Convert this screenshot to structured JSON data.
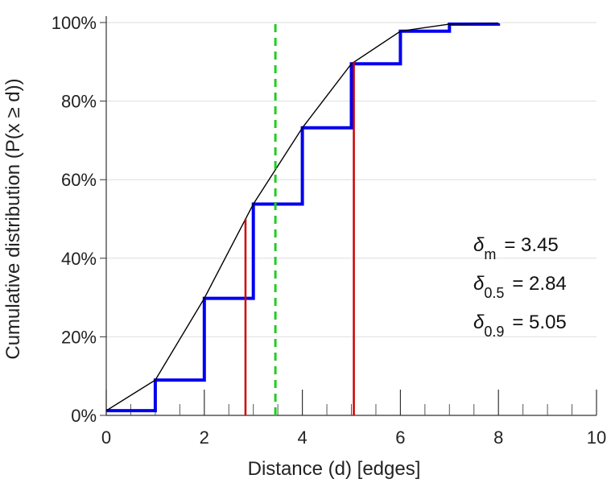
{
  "chart_data": {
    "type": "line",
    "xlabel": "Distance (d) [edges]",
    "ylabel": "Cumulative distribution (P(x ≥ d))",
    "xlim": [
      0,
      10
    ],
    "ylim": [
      0,
      100
    ],
    "x_ticks": [
      0,
      2,
      4,
      6,
      8,
      10
    ],
    "x_tick_labels": [
      "0",
      "2",
      "4",
      "6",
      "8",
      "10"
    ],
    "y_ticks": [
      0,
      20,
      40,
      60,
      80,
      100
    ],
    "y_tick_labels": [
      "0%",
      "20%",
      "40%",
      "60%",
      "80%",
      "100%"
    ],
    "x_minor_ticks": [
      0.5,
      1,
      1.5,
      2.5,
      3,
      3.5,
      4.5,
      5,
      5.5,
      6.5,
      7,
      7.5,
      8.5,
      9,
      9.5
    ],
    "grid": "horizontal",
    "series": [
      {
        "style": "step",
        "color": "#0000ee",
        "x": [
          0,
          1,
          2,
          3,
          4,
          5,
          6,
          7,
          8
        ],
        "y": [
          1.2,
          9.0,
          29.8,
          53.8,
          73.2,
          89.5,
          97.8,
          99.6,
          99.8
        ]
      },
      {
        "style": "line",
        "color": "#000000",
        "x": [
          0,
          1,
          2,
          3,
          4,
          5,
          6,
          7,
          8
        ],
        "y": [
          1.2,
          9.0,
          29.8,
          53.8,
          73.2,
          89.5,
          97.8,
          99.6,
          99.8
        ]
      }
    ],
    "vlines": [
      {
        "x": 2.84,
        "y_top": 50,
        "color": "#cc0000",
        "style": "solid"
      },
      {
        "x": 5.05,
        "y_top": 90,
        "color": "#cc0000",
        "style": "solid"
      },
      {
        "x": 3.45,
        "y_top": 100,
        "color": "#22cc22",
        "style": "dashed"
      }
    ],
    "annotations": [
      {
        "symbol": "δ",
        "subscript": "m",
        "value": "= 3.45"
      },
      {
        "symbol": "δ",
        "subscript": "0.5",
        "value": "= 2.84"
      },
      {
        "symbol": "δ",
        "subscript": "0.9",
        "value": "= 5.05"
      }
    ]
  }
}
